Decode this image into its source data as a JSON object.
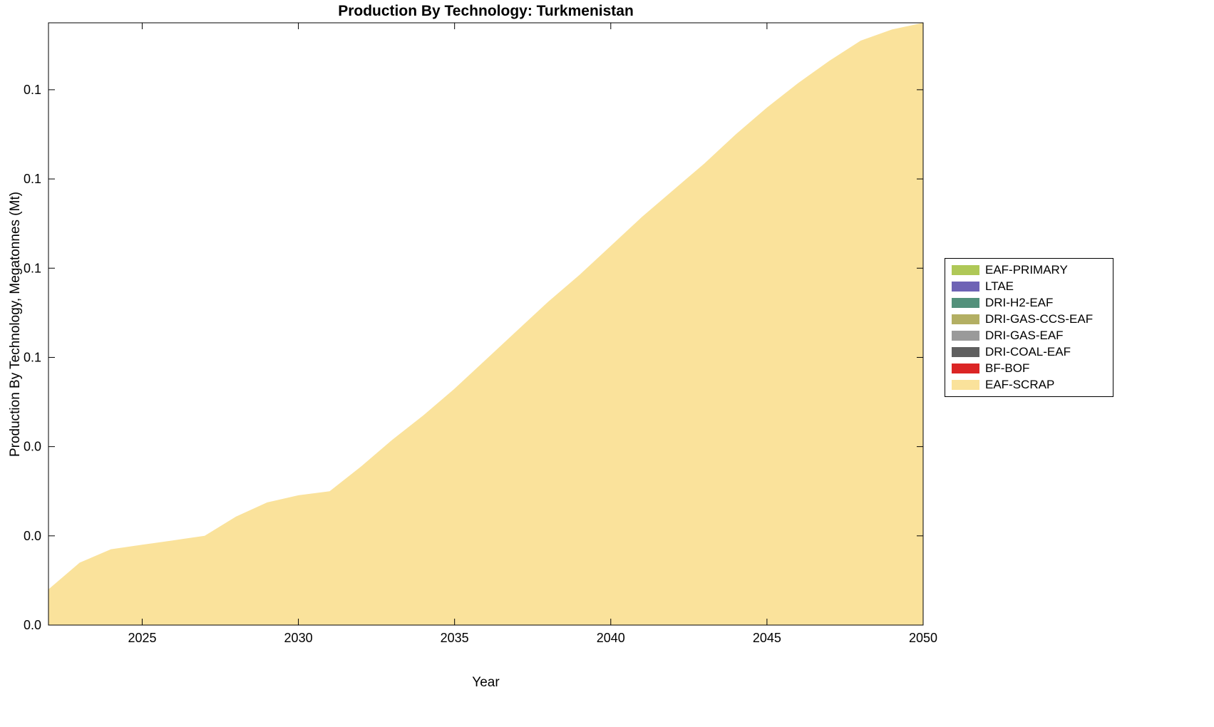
{
  "figure": {
    "background_color": "#ffffff",
    "axes_color": "#000000"
  },
  "chart_data": {
    "type": "area",
    "title": "Production By Technology: Turkmenistan",
    "xlabel": "Year",
    "ylabel": "Production By Technology, Megatonnes (Mt)",
    "xlim": [
      2022,
      2050
    ],
    "ylim": [
      0,
      0.135
    ],
    "grid": false,
    "xticks": [
      2025,
      2030,
      2035,
      2040,
      2045,
      2050
    ],
    "xtick_labels": [
      "2025",
      "2030",
      "2035",
      "2040",
      "2045",
      "2050"
    ],
    "ytick_values": [
      0,
      0.02,
      0.04,
      0.06,
      0.08,
      0.1,
      0.12
    ],
    "ytick_labels": [
      "0.0",
      "0.0",
      "0.0",
      "0.1",
      "0.1",
      "0.1",
      "0.1"
    ],
    "x": [
      2022,
      2023,
      2024,
      2025,
      2026,
      2027,
      2028,
      2029,
      2030,
      2031,
      2032,
      2033,
      2034,
      2035,
      2036,
      2037,
      2038,
      2039,
      2040,
      2041,
      2042,
      2043,
      2044,
      2045,
      2046,
      2047,
      2048,
      2049,
      2050
    ],
    "series": [
      {
        "name": "EAF-SCRAP",
        "color": "#FAE29B",
        "values": [
          0.008,
          0.014,
          0.017,
          0.018,
          0.019,
          0.02,
          0.0243,
          0.0275,
          0.0291,
          0.03,
          0.0355,
          0.0415,
          0.047,
          0.053,
          0.0595,
          0.066,
          0.0725,
          0.0785,
          0.085,
          0.0915,
          0.0975,
          0.1035,
          0.11,
          0.116,
          0.1215,
          0.1265,
          0.131,
          0.1335,
          0.135
        ]
      }
    ],
    "zero_series": [
      "EAF-PRIMARY",
      "LTAE",
      "DRI-H2-EAF",
      "DRI-GAS-CCS-EAF",
      "DRI-GAS-EAF",
      "DRI-COAL-EAF",
      "BF-BOF"
    ],
    "legend": {
      "position": "right-outside",
      "items": [
        {
          "label": "EAF-PRIMARY",
          "color": "#AFC857"
        },
        {
          "label": "LTAE",
          "color": "#6E63B5"
        },
        {
          "label": "DRI-H2-EAF",
          "color": "#53917B"
        },
        {
          "label": "DRI-GAS-CCS-EAF",
          "color": "#B3AF63"
        },
        {
          "label": "DRI-GAS-EAF",
          "color": "#9A9A9A"
        },
        {
          "label": "DRI-COAL-EAF",
          "color": "#5F5F5F"
        },
        {
          "label": "BF-BOF",
          "color": "#DB2525"
        },
        {
          "label": "EAF-SCRAP",
          "color": "#FAE29B"
        }
      ]
    }
  }
}
